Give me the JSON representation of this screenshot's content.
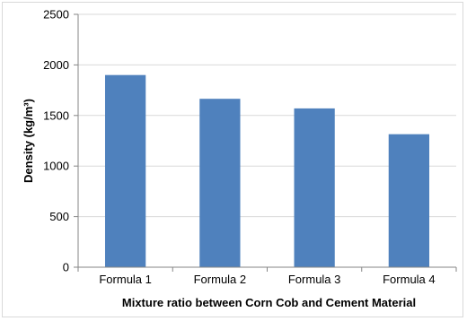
{
  "chart_data": {
    "type": "bar",
    "categories": [
      "Formula 1",
      "Formula 2",
      "Formula 3",
      "Formula 4"
    ],
    "values": [
      1900,
      1665,
      1570,
      1315
    ],
    "title": "",
    "xlabel": "Mixture ratio between Corn Cob and Cement Material",
    "ylabel": "Density (kg/m³)",
    "ylim": [
      0,
      2500
    ],
    "yticks": [
      "0",
      "500",
      "1000",
      "1500",
      "2000",
      "2500"
    ],
    "grid": "horizontal",
    "legend": "none",
    "colors": {
      "bar": "#4f81bd",
      "grid": "#d9d9d9",
      "axis": "#868686"
    }
  }
}
